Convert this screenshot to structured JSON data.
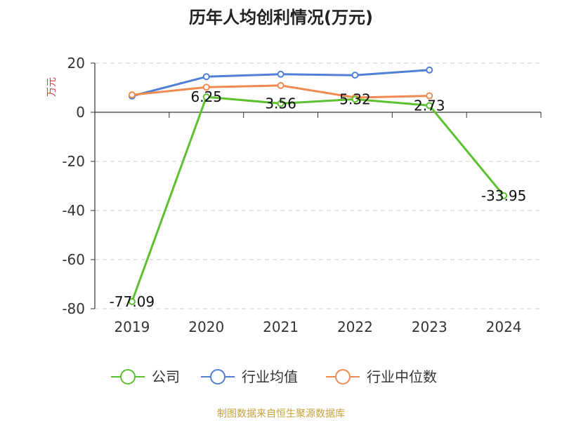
{
  "chart_data": {
    "type": "line",
    "title": "历年人均创利情况(万元)",
    "ylabel": "万元",
    "xlabel": "",
    "categories": [
      "2019",
      "2020",
      "2021",
      "2022",
      "2023",
      "2024"
    ],
    "ylim": [
      -80,
      20
    ],
    "yticks": [
      20,
      0,
      -20,
      -40,
      -60,
      -80
    ],
    "grid": true,
    "legend_position": "bottom-center",
    "series": [
      {
        "name": "公司",
        "color": "#5cc12f",
        "values": [
          -77.09,
          6.25,
          3.56,
          5.32,
          2.73,
          -33.95
        ],
        "labels": [
          "-77.09",
          "6.25",
          "3.56",
          "5.32",
          "2.73",
          "-33.95"
        ]
      },
      {
        "name": "行业均值",
        "color": "#4f7fd6",
        "values": [
          6.6,
          14.5,
          15.5,
          15.1,
          17.2,
          null
        ]
      },
      {
        "name": "行业中位数",
        "color": "#f08a50",
        "values": [
          7.1,
          10.2,
          10.9,
          6.0,
          6.7,
          null
        ]
      }
    ]
  },
  "source_text": "制图数据来自恒生聚源数据库"
}
